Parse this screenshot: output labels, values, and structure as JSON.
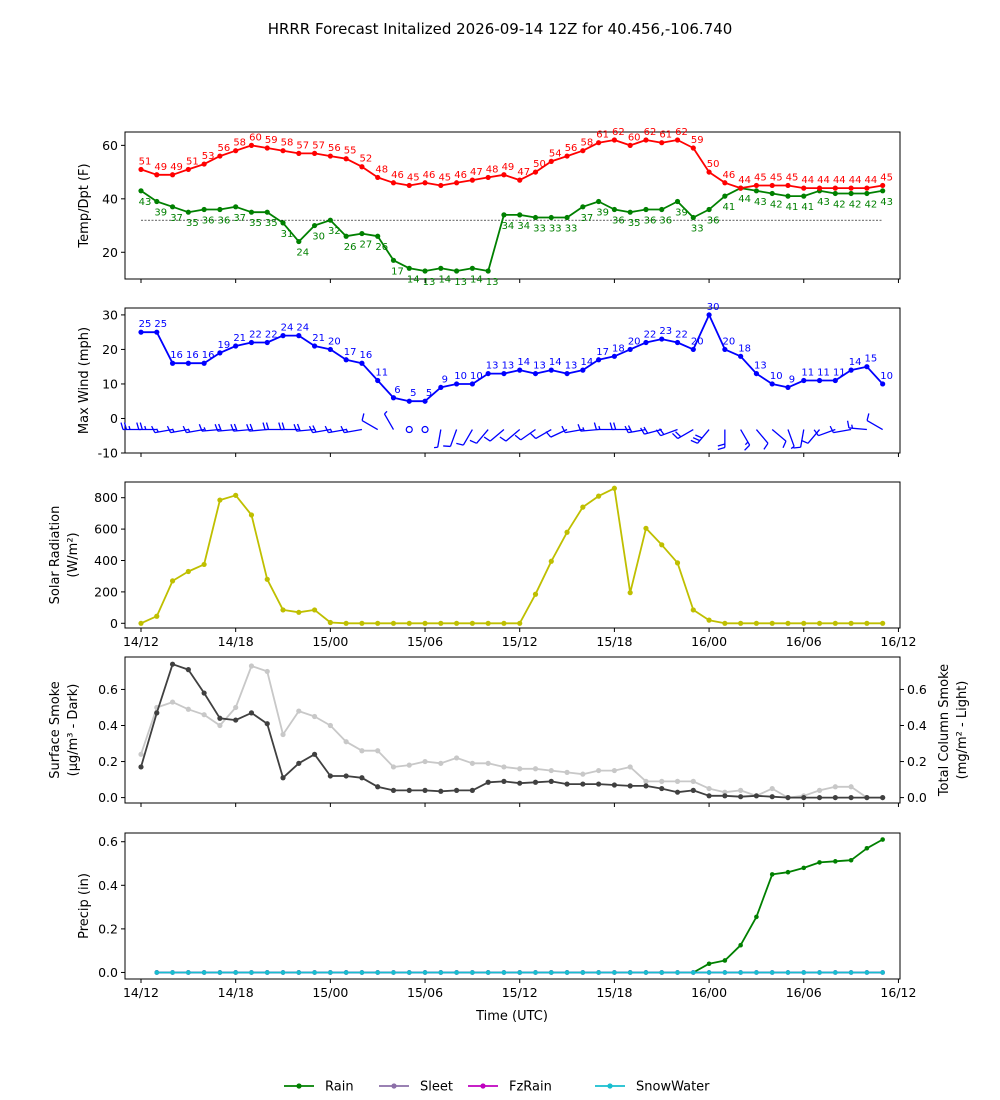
{
  "title": "HRRR Forecast Initalized 2026-09-14 12Z for 40.456,-106.740",
  "time_labels": [
    "14/12",
    "14/18",
    "15/00",
    "15/06",
    "15/12",
    "15/18",
    "16/00",
    "16/06",
    "16/12"
  ],
  "xlabel": "Time (UTC)",
  "colors": {
    "temp": "#ff0000",
    "dewpoint": "#008000",
    "wind": "#0000ff",
    "solar": "#bfbf00",
    "smoke_dark": "#404040",
    "smoke_light": "#c8c8c8",
    "rain": "#008000",
    "sleet": "#8c6fa8",
    "fzrain": "#bf00bf",
    "snowwater": "#17becf"
  },
  "legend": [
    {
      "label": "Rain",
      "color": "#008000"
    },
    {
      "label": "Sleet",
      "color": "#8c6fa8"
    },
    {
      "label": "FzRain",
      "color": "#bf00bf"
    },
    {
      "label": "SnowWater",
      "color": "#17becf"
    }
  ],
  "chart_data": [
    {
      "type": "line",
      "ylabel": "Temp/Dpt (F)",
      "yticks": [
        20,
        40,
        60
      ],
      "ylim": [
        10,
        65
      ],
      "freezing_line": 32,
      "x_hours": "0..48 hourly from 14/12",
      "series": [
        {
          "values": [
            51,
            49,
            49,
            51,
            53,
            56,
            58,
            60,
            59,
            58,
            57,
            57,
            56,
            55,
            52,
            48,
            46,
            45,
            46,
            45,
            46,
            47,
            48,
            49,
            47,
            50,
            54,
            56,
            58,
            61,
            62,
            60,
            62,
            61,
            62,
            59,
            50,
            46,
            44,
            45,
            45,
            45,
            44,
            44,
            44,
            44,
            44,
            45
          ],
          "labels": [
            "51",
            "49",
            "49",
            "51",
            "53",
            "56",
            "58",
            "60",
            "59",
            "58",
            "57",
            "57",
            "56",
            "55",
            "52",
            "48",
            "46",
            "45",
            "46",
            "45",
            "46",
            "47",
            "48",
            "49",
            "47",
            "50",
            "54",
            "56",
            "58",
            "61",
            "62",
            "60",
            "62",
            "61",
            "62",
            "59",
            "50",
            "46",
            "44",
            "45",
            "45",
            "45",
            "44",
            "44",
            "44",
            "44",
            "44",
            "45"
          ]
        },
        {
          "values": [
            43,
            39,
            37,
            35,
            36,
            36,
            37,
            35,
            35,
            31,
            24,
            30,
            32,
            26,
            27,
            26,
            17,
            14,
            13,
            14,
            13,
            14,
            13,
            34,
            34,
            33,
            33,
            33,
            37,
            39,
            36,
            35,
            36,
            36,
            39,
            33,
            36,
            41,
            44,
            43,
            42,
            41,
            41,
            43,
            42,
            42,
            42,
            43
          ],
          "labels": [
            "43",
            "39",
            "37",
            "35",
            "36",
            "36",
            "37",
            "35",
            "35",
            "31",
            "24",
            "30",
            "32",
            "26",
            "27",
            "26",
            "17",
            "14",
            "13",
            "14",
            "13",
            "14",
            "13",
            "34",
            "34",
            "33",
            "33",
            "33",
            "37",
            "39",
            "36",
            "35",
            "36",
            "36",
            "39",
            "33",
            "36",
            "41",
            "44",
            "43",
            "42",
            "41",
            "41",
            "43",
            "42",
            "42",
            "42",
            "43"
          ]
        }
      ]
    },
    {
      "type": "line",
      "ylabel": "Max Wind (mph)",
      "yticks": [
        -10,
        0,
        10,
        20,
        30
      ],
      "ylim": [
        -10,
        32
      ],
      "values": [
        25,
        25,
        16,
        16,
        16,
        19,
        21,
        22,
        22,
        24,
        24,
        21,
        20,
        17,
        16,
        11,
        6,
        5,
        5,
        9,
        10,
        10,
        13,
        13,
        14,
        13,
        14,
        13,
        14,
        17,
        18,
        20,
        22,
        23,
        22,
        20,
        30,
        20,
        18,
        13,
        10,
        9,
        11,
        11,
        11,
        14,
        15,
        10
      ],
      "labels": [
        "25",
        "25",
        "16",
        "16",
        "16",
        "19",
        "21",
        "22",
        "22",
        "24",
        "24",
        "21",
        "20",
        "17",
        "16",
        "11",
        "6",
        "5",
        "5",
        "9",
        "10",
        "10",
        "13",
        "13",
        "14",
        "13",
        "14",
        "13",
        "14",
        "17",
        "18",
        "20",
        "22",
        "23",
        "22",
        "20",
        "30",
        "20",
        "18",
        "13",
        "10",
        "9",
        "11",
        "11",
        "11",
        "14",
        "15",
        "10"
      ],
      "barb_directions_deg": [
        270,
        270,
        260,
        260,
        260,
        265,
        265,
        265,
        265,
        270,
        270,
        265,
        260,
        260,
        260,
        300,
        330,
        0,
        190,
        190,
        200,
        210,
        220,
        230,
        230,
        235,
        240,
        245,
        260,
        265,
        270,
        270,
        260,
        255,
        250,
        240,
        220,
        180,
        150,
        140,
        130,
        160,
        190,
        220,
        250,
        260,
        275,
        300
      ]
    },
    {
      "type": "line",
      "ylabel": "Solar Radiation (W/m²)",
      "yticks": [
        0,
        200,
        400,
        600,
        800
      ],
      "ylim": [
        -30,
        900
      ],
      "values": [
        0,
        45,
        270,
        330,
        375,
        785,
        815,
        690,
        280,
        85,
        70,
        85,
        5,
        0,
        0,
        0,
        0,
        0,
        0,
        0,
        0,
        0,
        0,
        0,
        0,
        185,
        395,
        580,
        740,
        810,
        860,
        195,
        605,
        500,
        385,
        85,
        20,
        0,
        0,
        0,
        0,
        0,
        0,
        0,
        0,
        0,
        0,
        0
      ]
    },
    {
      "type": "line",
      "ylabel": "Surface Smoke (µg/m³ - Dark)",
      "ylabel_right": "Total Column Smoke (mg/m² - Light)",
      "yticks": [
        0.0,
        0.2,
        0.4,
        0.6
      ],
      "ylim": [
        -0.03,
        0.78
      ],
      "series": [
        {
          "values": [
            0.17,
            0.47,
            0.74,
            0.71,
            0.58,
            0.44,
            0.43,
            0.47,
            0.41,
            0.11,
            0.19,
            0.24,
            0.12,
            0.12,
            0.11,
            0.06,
            0.04,
            0.04,
            0.04,
            0.035,
            0.04,
            0.04,
            0.085,
            0.09,
            0.08,
            0.085,
            0.09,
            0.075,
            0.075,
            0.075,
            0.07,
            0.065,
            0.065,
            0.05,
            0.03,
            0.04,
            0.01,
            0.01,
            0.005,
            0.01,
            0.005,
            0.0,
            0.0,
            0.0,
            0.0,
            0.0,
            0.0,
            0.0
          ]
        },
        {
          "values": [
            0.24,
            0.5,
            0.53,
            0.49,
            0.46,
            0.4,
            0.5,
            0.73,
            0.7,
            0.35,
            0.48,
            0.45,
            0.4,
            0.31,
            0.26,
            0.26,
            0.17,
            0.18,
            0.2,
            0.19,
            0.22,
            0.19,
            0.19,
            0.17,
            0.16,
            0.16,
            0.15,
            0.14,
            0.13,
            0.15,
            0.15,
            0.17,
            0.09,
            0.09,
            0.09,
            0.09,
            0.05,
            0.03,
            0.04,
            0.01,
            0.05,
            0.0,
            0.01,
            0.04,
            0.06,
            0.06,
            0.0,
            0.0
          ]
        }
      ]
    },
    {
      "type": "line",
      "ylabel": "Precip (in)",
      "yticks": [
        0.0,
        0.2,
        0.4,
        0.6
      ],
      "ylim": [
        -0.03,
        0.64
      ],
      "series": [
        {
          "name": "Rain",
          "values": [
            0,
            0,
            0,
            0,
            0,
            0,
            0,
            0,
            0,
            0,
            0,
            0,
            0,
            0,
            0,
            0,
            0,
            0,
            0,
            0,
            0,
            0,
            0,
            0,
            0,
            0,
            0,
            0,
            0,
            0,
            0,
            0,
            0,
            0,
            0,
            0.0,
            0.04,
            0.055,
            0.125,
            0.255,
            0.45,
            0.46,
            0.48,
            0.505,
            0.51,
            0.515,
            0.57,
            0.61
          ]
        },
        {
          "name": "Sleet",
          "values": [
            0,
            0,
            0,
            0,
            0,
            0,
            0,
            0,
            0,
            0,
            0,
            0,
            0,
            0,
            0,
            0,
            0,
            0,
            0,
            0,
            0,
            0,
            0,
            0,
            0,
            0,
            0,
            0,
            0,
            0,
            0,
            0,
            0,
            0,
            0,
            0,
            0,
            0,
            0,
            0,
            0,
            0,
            0,
            0,
            0,
            0,
            0,
            0
          ]
        },
        {
          "name": "FzRain",
          "values": [
            0,
            0,
            0,
            0,
            0,
            0,
            0,
            0,
            0,
            0,
            0,
            0,
            0,
            0,
            0,
            0,
            0,
            0,
            0,
            0,
            0,
            0,
            0,
            0,
            0,
            0,
            0,
            0,
            0,
            0,
            0,
            0,
            0,
            0,
            0,
            0,
            0,
            0,
            0,
            0,
            0,
            0,
            0,
            0,
            0,
            0,
            0,
            0
          ]
        },
        {
          "name": "SnowWater",
          "values": [
            0,
            0,
            0,
            0,
            0,
            0,
            0,
            0,
            0,
            0,
            0,
            0,
            0,
            0,
            0,
            0,
            0,
            0,
            0,
            0,
            0,
            0,
            0,
            0,
            0,
            0,
            0,
            0,
            0,
            0,
            0,
            0,
            0,
            0,
            0,
            0,
            0,
            0,
            0,
            0,
            0,
            0,
            0,
            0,
            0,
            0,
            0,
            0
          ]
        }
      ]
    }
  ]
}
